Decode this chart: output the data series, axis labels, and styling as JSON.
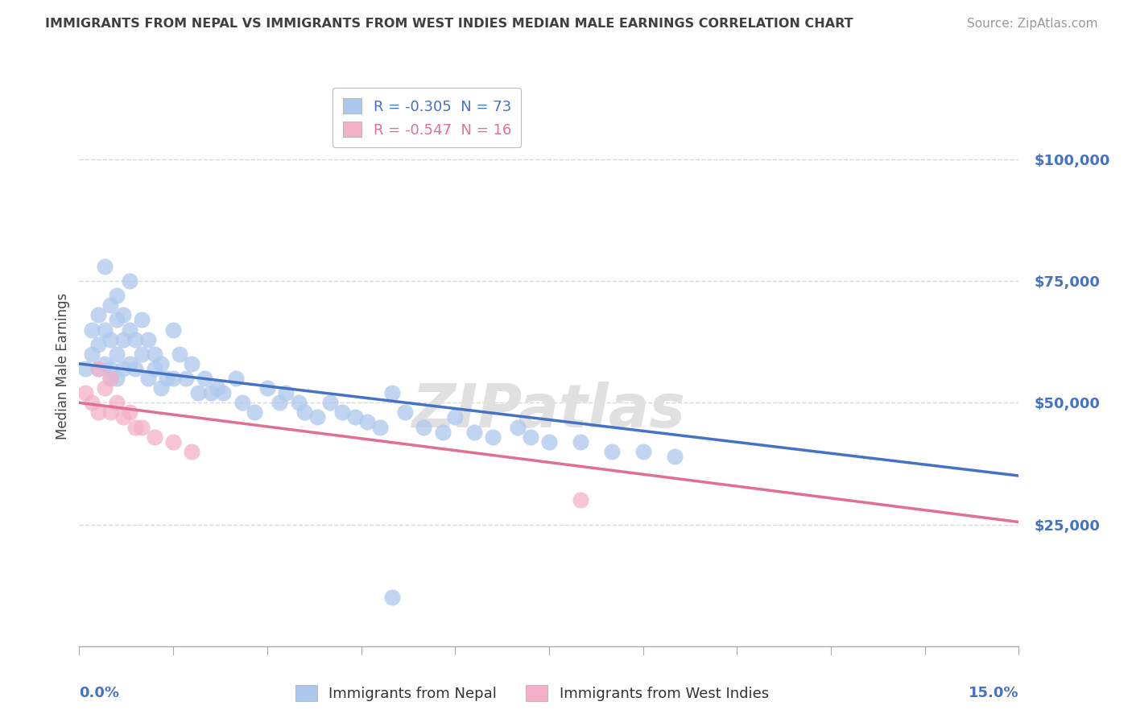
{
  "title": "IMMIGRANTS FROM NEPAL VS IMMIGRANTS FROM WEST INDIES MEDIAN MALE EARNINGS CORRELATION CHART",
  "source": "Source: ZipAtlas.com",
  "ylabel": "Median Male Earnings",
  "xlim": [
    0.0,
    0.15
  ],
  "ylim": [
    0,
    115000
  ],
  "yticks": [
    25000,
    50000,
    75000,
    100000
  ],
  "ytick_labels": [
    "$25,000",
    "$50,000",
    "$75,000",
    "$100,000"
  ],
  "nepal_r": -0.305,
  "nepal_n": 73,
  "west_indies_r": -0.547,
  "west_indies_n": 16,
  "nepal_scatter_color": "#adc8ed",
  "nepal_line_color": "#4472c4",
  "wi_scatter_color": "#f4b0c8",
  "wi_line_color": "#e07090",
  "ytick_color": "#4472c4",
  "xtick_label_color": "#4472c4",
  "title_color": "#404040",
  "source_color": "#999999",
  "grid_color": "#d8d8d8",
  "bg_color": "#ffffff",
  "watermark": "ZIPatlas",
  "nepal_line_x": [
    0.0,
    0.15
  ],
  "nepal_line_y": [
    58000,
    35000
  ],
  "wi_line_x": [
    0.0,
    0.15
  ],
  "wi_line_y": [
    50000,
    25500
  ],
  "nepal_points_x": [
    0.001,
    0.002,
    0.002,
    0.003,
    0.003,
    0.003,
    0.004,
    0.004,
    0.004,
    0.005,
    0.005,
    0.005,
    0.005,
    0.006,
    0.006,
    0.006,
    0.006,
    0.007,
    0.007,
    0.007,
    0.008,
    0.008,
    0.008,
    0.009,
    0.009,
    0.01,
    0.01,
    0.011,
    0.011,
    0.012,
    0.012,
    0.013,
    0.013,
    0.014,
    0.015,
    0.015,
    0.016,
    0.017,
    0.018,
    0.019,
    0.02,
    0.021,
    0.022,
    0.023,
    0.025,
    0.026,
    0.028,
    0.03,
    0.032,
    0.033,
    0.035,
    0.036,
    0.038,
    0.04,
    0.042,
    0.044,
    0.046,
    0.048,
    0.05,
    0.052,
    0.055,
    0.058,
    0.06,
    0.063,
    0.066,
    0.07,
    0.072,
    0.075,
    0.08,
    0.085,
    0.09,
    0.095,
    0.05
  ],
  "nepal_points_y": [
    57000,
    60000,
    65000,
    62000,
    68000,
    57000,
    78000,
    65000,
    58000,
    70000,
    63000,
    57000,
    55000,
    72000,
    67000,
    60000,
    55000,
    68000,
    63000,
    57000,
    75000,
    65000,
    58000,
    63000,
    57000,
    67000,
    60000,
    63000,
    55000,
    60000,
    57000,
    58000,
    53000,
    55000,
    65000,
    55000,
    60000,
    55000,
    58000,
    52000,
    55000,
    52000,
    53000,
    52000,
    55000,
    50000,
    48000,
    53000,
    50000,
    52000,
    50000,
    48000,
    47000,
    50000,
    48000,
    47000,
    46000,
    45000,
    52000,
    48000,
    45000,
    44000,
    47000,
    44000,
    43000,
    45000,
    43000,
    42000,
    42000,
    40000,
    40000,
    39000,
    10000
  ],
  "wi_points_x": [
    0.001,
    0.002,
    0.003,
    0.003,
    0.004,
    0.005,
    0.005,
    0.006,
    0.007,
    0.008,
    0.009,
    0.01,
    0.012,
    0.015,
    0.018,
    0.08
  ],
  "wi_points_y": [
    52000,
    50000,
    57000,
    48000,
    53000,
    55000,
    48000,
    50000,
    47000,
    48000,
    45000,
    45000,
    43000,
    42000,
    40000,
    30000
  ]
}
